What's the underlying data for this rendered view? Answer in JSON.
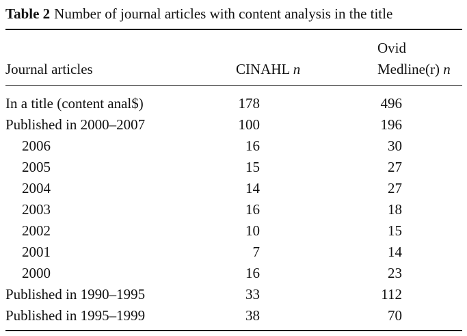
{
  "caption": {
    "label": "Table 2",
    "title": "Number of journal articles with content analysis in the title"
  },
  "header": {
    "col0": "Journal articles",
    "col1_name": "CINAHL",
    "col1_unit": "n",
    "col2_line1": "Ovid",
    "col2_name": "Medline(r)",
    "col2_unit": "n"
  },
  "rows": [
    {
      "label": "In a title (content anal$)",
      "cinahl": "178",
      "medline": "496"
    },
    {
      "label": "Published in 2000–2007",
      "cinahl": "100",
      "medline": "196"
    },
    {
      "label": "2006",
      "cinahl": "16",
      "medline": "30"
    },
    {
      "label": "2005",
      "cinahl": "15",
      "medline": "27"
    },
    {
      "label": "2004",
      "cinahl": "14",
      "medline": "27"
    },
    {
      "label": "2003",
      "cinahl": "16",
      "medline": "18"
    },
    {
      "label": "2002",
      "cinahl": "10",
      "medline": "15"
    },
    {
      "label": "2001",
      "cinahl": "7",
      "medline": "14"
    },
    {
      "label": "2000",
      "cinahl": "16",
      "medline": "23"
    },
    {
      "label": "Published in 1990–1995",
      "cinahl": "33",
      "medline": "112"
    },
    {
      "label": "Published in 1995–1999",
      "cinahl": "38",
      "medline": "70"
    }
  ]
}
